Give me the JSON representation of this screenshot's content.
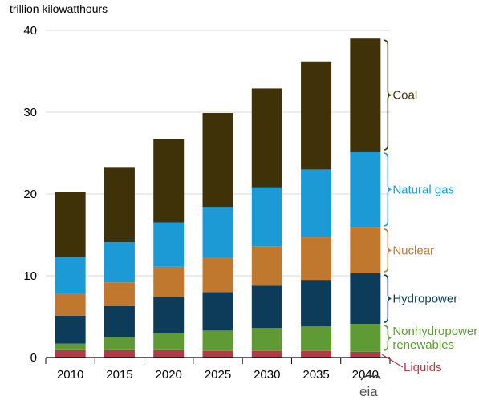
{
  "chart_data": {
    "type": "bar",
    "stacked": true,
    "y_unit_label": "trillion  kilowatthours",
    "categories": [
      "2010",
      "2015",
      "2020",
      "2025",
      "2030",
      "2035",
      "2040"
    ],
    "yticks": [
      0,
      10,
      20,
      30,
      40
    ],
    "ylim": [
      0,
      40
    ],
    "grid": true,
    "series": [
      {
        "name": "Liquids",
        "color": "#b03a48",
        "values": [
          0.9,
          0.9,
          0.9,
          0.8,
          0.8,
          0.8,
          0.7
        ]
      },
      {
        "name": "Nonhydropower renewables",
        "color": "#5f9a35",
        "values": [
          0.8,
          1.6,
          2.1,
          2.5,
          2.8,
          3.0,
          3.4
        ]
      },
      {
        "name": "Hydropower",
        "color": "#0d3b5a",
        "values": [
          3.4,
          3.8,
          4.4,
          4.7,
          5.2,
          5.7,
          6.2
        ]
      },
      {
        "name": "Nuclear",
        "color": "#c0782f",
        "values": [
          2.7,
          2.9,
          3.7,
          4.2,
          4.8,
          5.2,
          5.6
        ]
      },
      {
        "name": "Natural gas",
        "color": "#1b9ad6",
        "values": [
          4.5,
          4.9,
          5.4,
          6.2,
          7.2,
          8.3,
          9.3
        ]
      },
      {
        "name": "Coal",
        "color": "#3f3209",
        "values": [
          7.9,
          9.2,
          10.2,
          11.5,
          12.1,
          13.2,
          13.8
        ]
      }
    ],
    "series_labels": [
      {
        "lines": [
          "Coal"
        ],
        "color": "#3f3209"
      },
      {
        "lines": [
          "Natural  gas"
        ],
        "color": "#1b9ad6"
      },
      {
        "lines": [
          "Nuclear"
        ],
        "color": "#c0782f"
      },
      {
        "lines": [
          "Hydropower"
        ],
        "color": "#0d3b5a"
      },
      {
        "lines": [
          "Nonhydropower",
          "renewables"
        ],
        "color": "#5f9a35"
      },
      {
        "lines": [
          "Liquids"
        ],
        "color": "#b03a48"
      }
    ]
  },
  "logo": {
    "text": "eia"
  }
}
